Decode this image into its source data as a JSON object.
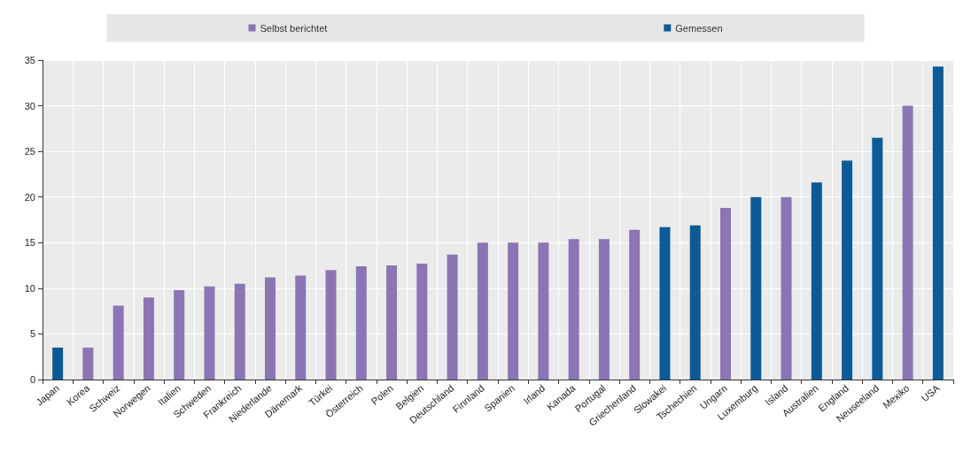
{
  "chart_data": {
    "type": "bar",
    "stacked": true,
    "categories": [
      "Japan",
      "Korea",
      "Schweiz",
      "Norwegen",
      "Italien",
      "Schweden",
      "Frankreich",
      "Niederlande",
      "Dänemark",
      "Türkei",
      "Österreich",
      "Polen",
      "Belgien",
      "Deutschland",
      "Finnland",
      "Spanien",
      "Irland",
      "Kanada",
      "Portugal",
      "Griechenland",
      "Slowakei",
      "Tschechien",
      "Ungarn",
      "Luxemburg",
      "Island",
      "Australien",
      "England",
      "Neuseeland",
      "Mexiko",
      "USA"
    ],
    "series": [
      {
        "name": "Selbst berichtet",
        "color": "#8b75b5",
        "values": [
          null,
          3.5,
          8.1,
          9.0,
          9.8,
          10.2,
          10.5,
          11.2,
          11.4,
          12.0,
          12.4,
          12.5,
          12.7,
          13.7,
          15.0,
          15.0,
          15.0,
          15.4,
          15.4,
          16.4,
          null,
          null,
          18.8,
          null,
          20.0,
          null,
          null,
          null,
          30.0,
          null
        ]
      },
      {
        "name": "Gemessen",
        "color": "#0c5a96",
        "values": [
          3.5,
          null,
          null,
          null,
          null,
          null,
          null,
          null,
          null,
          null,
          null,
          null,
          null,
          null,
          null,
          null,
          null,
          null,
          null,
          null,
          16.7,
          16.9,
          null,
          20.0,
          null,
          21.6,
          24.0,
          26.5,
          null,
          34.3
        ]
      }
    ],
    "ylim": [
      0,
      35
    ],
    "yticks": [
      0,
      5,
      10,
      15,
      20,
      25,
      30,
      35
    ],
    "grid": true,
    "legend": "top"
  }
}
